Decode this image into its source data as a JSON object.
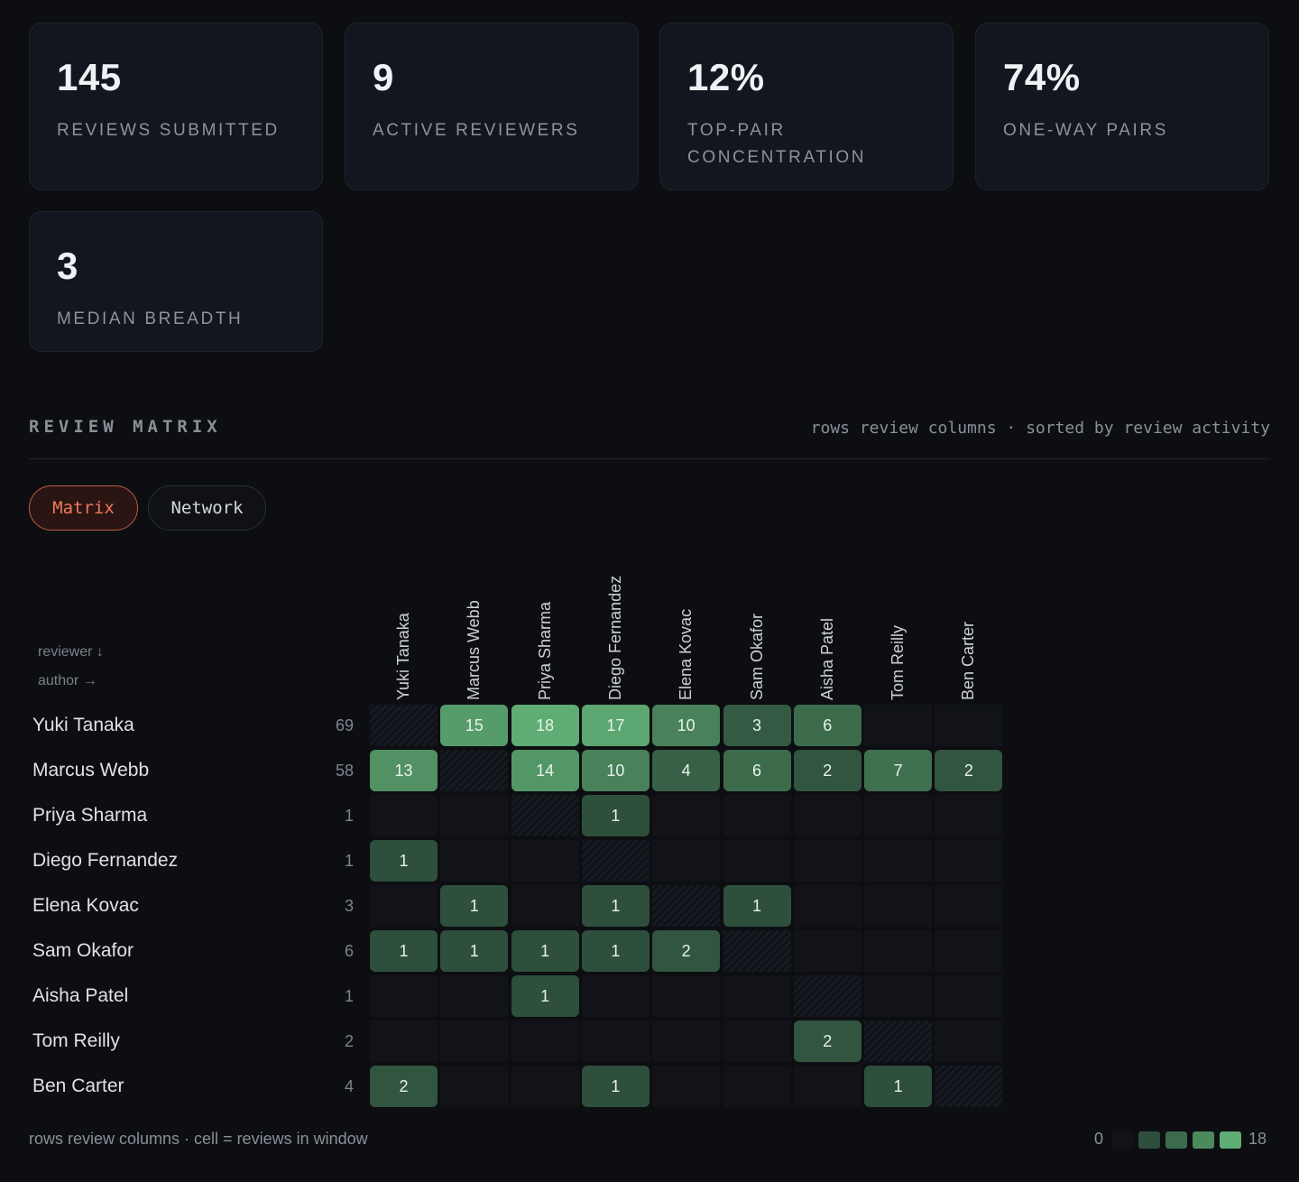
{
  "stats": [
    {
      "value": "145",
      "label": "REVIEWS SUBMITTED"
    },
    {
      "value": "9",
      "label": "ACTIVE REVIEWERS"
    },
    {
      "value": "12%",
      "label": "TOP-PAIR CONCENTRATION"
    },
    {
      "value": "74%",
      "label": "ONE-WAY PAIRS"
    },
    {
      "value": "3",
      "label": "MEDIAN BREADTH"
    }
  ],
  "section": {
    "title": "REVIEW MATRIX",
    "subtitle": "rows review columns · sorted by review activity"
  },
  "tabs": {
    "matrix": "Matrix",
    "network": "Network"
  },
  "axis_hints": {
    "reviewer": "reviewer ↓",
    "author": "author →"
  },
  "matrix": {
    "names": [
      "Yuki Tanaka",
      "Marcus Webb",
      "Priya Sharma",
      "Diego Fernandez",
      "Elena Kovac",
      "Sam Okafor",
      "Aisha Patel",
      "Tom Reilly",
      "Ben Carter"
    ],
    "row_totals": [
      "69",
      "58",
      "1",
      "1",
      "3",
      "6",
      "1",
      "2",
      "4"
    ],
    "values": [
      [
        null,
        15,
        18,
        17,
        10,
        3,
        6,
        0,
        0
      ],
      [
        13,
        null,
        14,
        10,
        4,
        6,
        2,
        7,
        2
      ],
      [
        0,
        0,
        null,
        1,
        0,
        0,
        0,
        0,
        0
      ],
      [
        1,
        0,
        0,
        null,
        0,
        0,
        0,
        0,
        0
      ],
      [
        0,
        1,
        0,
        1,
        null,
        1,
        0,
        0,
        0
      ],
      [
        1,
        1,
        1,
        1,
        2,
        null,
        0,
        0,
        0
      ],
      [
        0,
        0,
        1,
        0,
        0,
        0,
        null,
        0,
        0
      ],
      [
        0,
        0,
        0,
        0,
        0,
        0,
        2,
        null,
        0
      ],
      [
        2,
        0,
        0,
        1,
        0,
        0,
        0,
        1,
        null
      ]
    ],
    "max": 18
  },
  "footer": {
    "caption": "rows review columns · cell = reviews in window",
    "legend_min": "0",
    "legend_max": "18"
  },
  "colors": {
    "background": "#0d0e12",
    "accent": "#f07a5a",
    "cell_low": "#2e4f3c",
    "cell_high": "#5fad74"
  }
}
